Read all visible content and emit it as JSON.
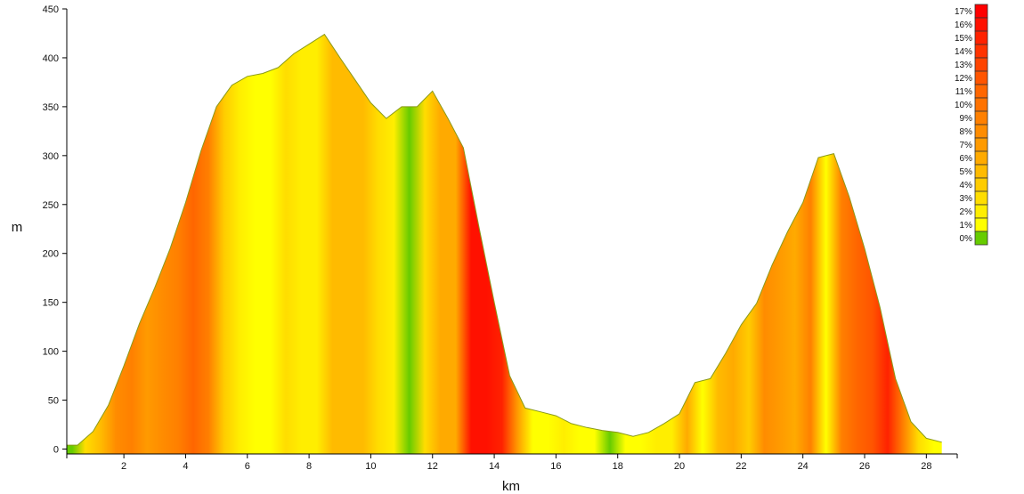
{
  "chart_data": {
    "type": "area",
    "xlabel": "km",
    "ylabel": "m",
    "xlim": [
      0.15,
      29
    ],
    "ylim": [
      -5,
      450
    ],
    "x_ticks": [
      2,
      4,
      6,
      8,
      10,
      12,
      14,
      16,
      18,
      20,
      22,
      24,
      26,
      28
    ],
    "y_ticks": [
      0,
      50,
      100,
      150,
      200,
      250,
      300,
      350,
      400,
      450
    ],
    "grid": false,
    "fill": "gradient by slope",
    "outline_color": "#8a9a1a",
    "series": [
      {
        "points": [
          [
            0.15,
            4
          ],
          [
            0.5,
            4
          ],
          [
            1.0,
            18
          ],
          [
            1.5,
            45
          ],
          [
            2.0,
            85
          ],
          [
            2.5,
            128
          ],
          [
            3.0,
            165
          ],
          [
            3.5,
            205
          ],
          [
            4.0,
            252
          ],
          [
            4.5,
            305
          ],
          [
            5.0,
            350
          ],
          [
            5.5,
            372
          ],
          [
            6.0,
            381
          ],
          [
            6.5,
            384
          ],
          [
            7.0,
            390
          ],
          [
            7.5,
            404
          ],
          [
            8.0,
            414
          ],
          [
            8.5,
            424
          ],
          [
            9.0,
            400
          ],
          [
            9.5,
            377
          ],
          [
            10.0,
            354
          ],
          [
            10.5,
            338
          ],
          [
            11.0,
            350
          ],
          [
            11.5,
            350
          ],
          [
            12.0,
            366
          ],
          [
            12.5,
            338
          ],
          [
            13.0,
            308
          ],
          [
            13.5,
            228
          ],
          [
            14.0,
            150
          ],
          [
            14.5,
            75
          ],
          [
            15.0,
            42
          ],
          [
            15.5,
            38
          ],
          [
            16.0,
            34
          ],
          [
            16.5,
            26
          ],
          [
            17.0,
            22
          ],
          [
            17.5,
            19
          ],
          [
            18.0,
            17
          ],
          [
            18.5,
            13
          ],
          [
            19.0,
            17
          ],
          [
            19.5,
            26
          ],
          [
            20.0,
            36
          ],
          [
            20.5,
            68
          ],
          [
            21.0,
            72
          ],
          [
            21.5,
            98
          ],
          [
            22.0,
            127
          ],
          [
            22.5,
            149
          ],
          [
            23.0,
            188
          ],
          [
            23.5,
            222
          ],
          [
            24.0,
            252
          ],
          [
            24.5,
            298
          ],
          [
            25.0,
            302
          ],
          [
            25.5,
            258
          ],
          [
            26.0,
            205
          ],
          [
            26.5,
            145
          ],
          [
            27.0,
            72
          ],
          [
            27.5,
            28
          ],
          [
            28.0,
            11
          ],
          [
            28.5,
            7
          ]
        ]
      }
    ],
    "legend": {
      "placement": "top-right",
      "entries": [
        {
          "label": "17%",
          "color": "#ff0000"
        },
        {
          "label": "16%",
          "color": "#ff1100"
        },
        {
          "label": "15%",
          "color": "#ff2200"
        },
        {
          "label": "14%",
          "color": "#ff3300"
        },
        {
          "label": "13%",
          "color": "#ff4400"
        },
        {
          "label": "12%",
          "color": "#ff5500"
        },
        {
          "label": "11%",
          "color": "#ff6600"
        },
        {
          "label": "10%",
          "color": "#ff7200"
        },
        {
          "label": "9%",
          "color": "#ff8000"
        },
        {
          "label": "8%",
          "color": "#ff8c00"
        },
        {
          "label": "7%",
          "color": "#ff9a00"
        },
        {
          "label": "6%",
          "color": "#ffaa00"
        },
        {
          "label": "5%",
          "color": "#ffbb00"
        },
        {
          "label": "4%",
          "color": "#ffcc00"
        },
        {
          "label": "3%",
          "color": "#ffdd00"
        },
        {
          "label": "2%",
          "color": "#ffee00"
        },
        {
          "label": "1%",
          "color": "#ffff00"
        },
        {
          "label": "0%",
          "color": "#66cc00"
        }
      ]
    }
  }
}
